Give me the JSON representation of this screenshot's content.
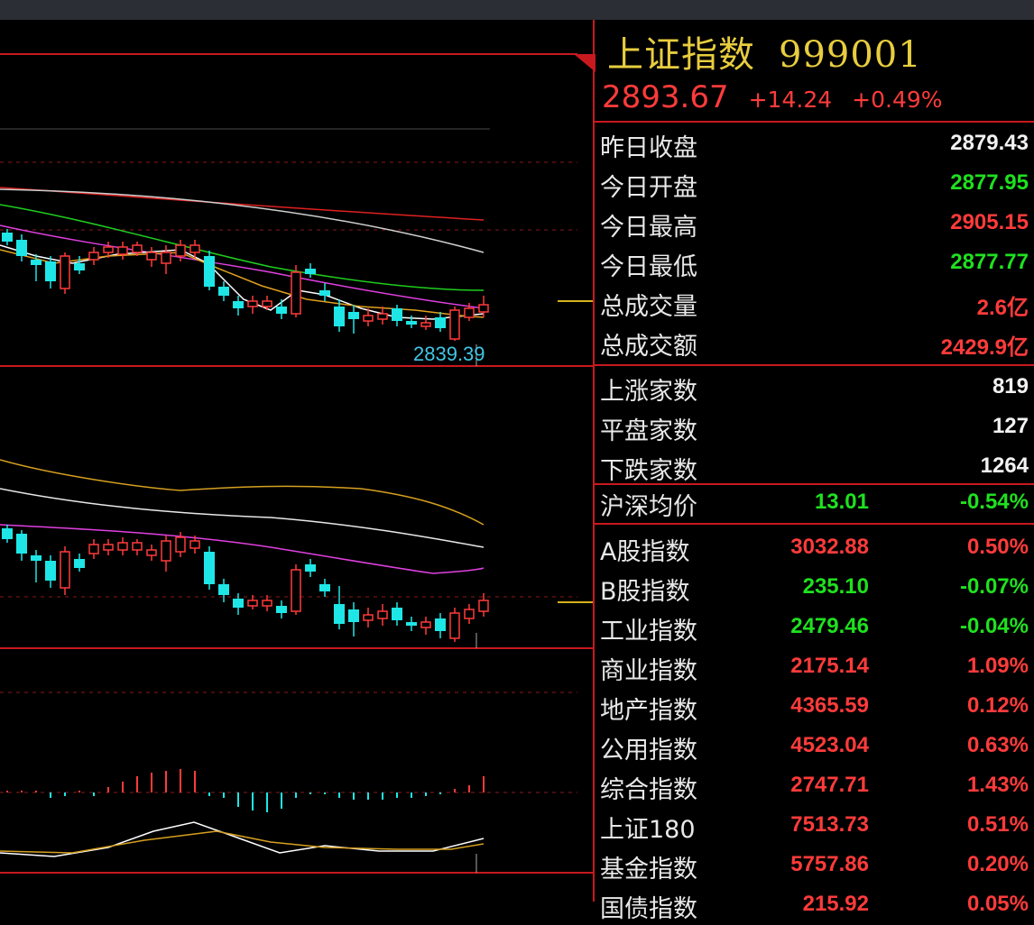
{
  "header": {
    "name": "上证指数",
    "code": "999001"
  },
  "quote": {
    "last": "2893.67",
    "change": "+14.24",
    "change_pct": "+0.49%"
  },
  "stats": [
    {
      "label": "昨日收盘",
      "value": "2879.43",
      "color": "white"
    },
    {
      "label": "今日开盘",
      "value": "2877.95",
      "color": "green"
    },
    {
      "label": "今日最高",
      "value": "2905.15",
      "color": "red"
    },
    {
      "label": "今日最低",
      "value": "2877.77",
      "color": "green"
    },
    {
      "label": "总成交量",
      "value": "2.6亿",
      "color": "red"
    },
    {
      "label": "总成交额",
      "value": "2429.9亿",
      "color": "red"
    }
  ],
  "breadth": [
    {
      "label": "上涨家数",
      "value": "819"
    },
    {
      "label": "平盘家数",
      "value": "127"
    },
    {
      "label": "下跌家数",
      "value": "1264"
    }
  ],
  "avg_price": {
    "label": "沪深均价",
    "value": "13.01",
    "pct": "-0.54%"
  },
  "indices": [
    {
      "label": "A股指数",
      "value": "3032.88",
      "pct": "0.50%",
      "color": "red"
    },
    {
      "label": "B股指数",
      "value": "235.10",
      "pct": "-0.07%",
      "color": "green"
    },
    {
      "label": "工业指数",
      "value": "2479.46",
      "pct": "-0.04%",
      "color": "green"
    },
    {
      "label": "商业指数",
      "value": "2175.14",
      "pct": "1.09%",
      "color": "red"
    },
    {
      "label": "地产指数",
      "value": "4365.59",
      "pct": "0.12%",
      "color": "red"
    },
    {
      "label": "公用指数",
      "value": "4523.04",
      "pct": "0.63%",
      "color": "red"
    },
    {
      "label": "综合指数",
      "value": "2747.71",
      "pct": "1.43%",
      "color": "red"
    },
    {
      "label": "上证180",
      "value": "7513.73",
      "pct": "0.51%",
      "color": "red"
    },
    {
      "label": "基金指数",
      "value": "5757.86",
      "pct": "0.20%",
      "color": "red"
    },
    {
      "label": "国债指数",
      "value": "215.92",
      "pct": "0.05%",
      "color": "red"
    }
  ],
  "chart": {
    "low_label": "2839.39"
  },
  "colors": {
    "up": "#ff3b3b",
    "down": "#1fe6e6",
    "border": "#c8191f",
    "title": "#e8cd3e"
  }
}
